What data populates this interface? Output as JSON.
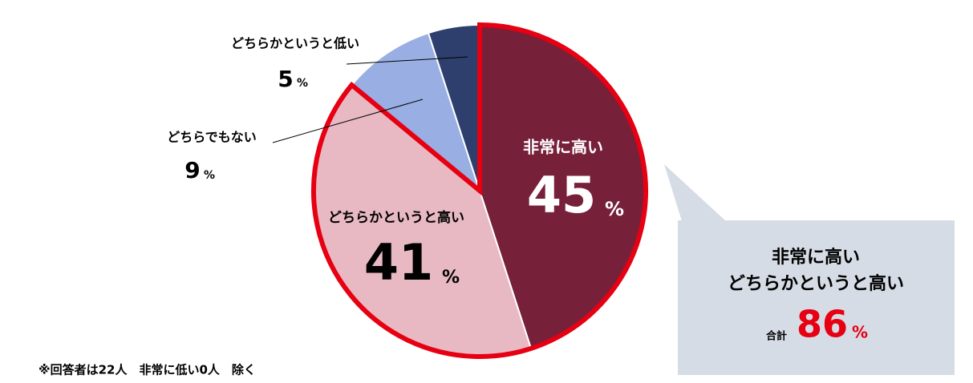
{
  "chart_data": {
    "type": "pie",
    "categories": [
      "非常に高い",
      "どちらかというと高い",
      "どちらでもない",
      "どちらかというと低い"
    ],
    "values": [
      45,
      41,
      9,
      5
    ],
    "colors": [
      "#77203a",
      "#e8b9c3",
      "#99afe3",
      "#2e3f6e"
    ],
    "unit": "%",
    "callout": {
      "lines": [
        "非常に高い",
        "どちらかというと高い"
      ],
      "total_label": "合計",
      "total": 86,
      "outline_color": "#e60012"
    },
    "footnote": "※回答者は22人　非常に低い0人　除く"
  }
}
